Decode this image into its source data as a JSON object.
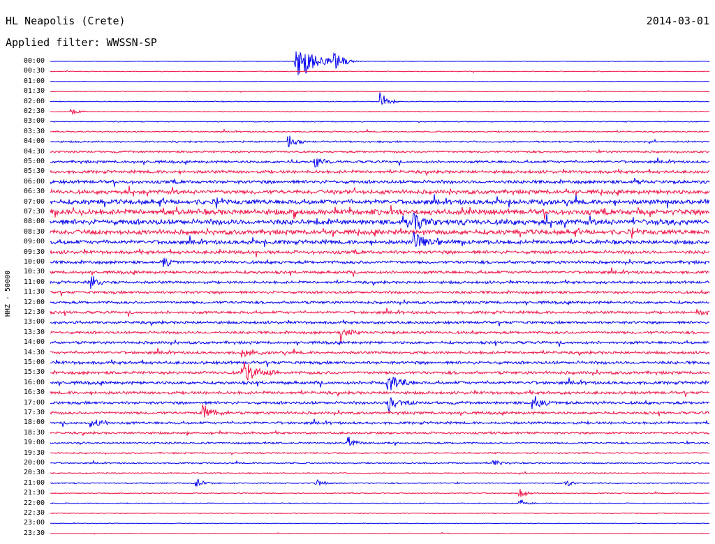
{
  "header": {
    "station": "HL Neapolis (Crete)",
    "date": "2014-03-01",
    "filter": "Applied filter: WWSSN-SP"
  },
  "chart_data": {
    "type": "line",
    "chart_kind": "helicorder seismogram",
    "ylabel": "HHZ - 50000",
    "rows": [
      "00:00",
      "00:30",
      "01:00",
      "01:30",
      "02:00",
      "02:30",
      "03:00",
      "03:30",
      "04:00",
      "04:30",
      "05:00",
      "05:30",
      "06:00",
      "06:30",
      "07:00",
      "07:30",
      "08:00",
      "08:30",
      "09:00",
      "09:30",
      "10:00",
      "10:30",
      "11:00",
      "11:30",
      "12:00",
      "12:30",
      "13:00",
      "13:30",
      "14:00",
      "14:30",
      "15:00",
      "15:30",
      "16:00",
      "16:30",
      "17:00",
      "17:30",
      "18:00",
      "18:30",
      "19:00",
      "19:30",
      "20:00",
      "20:30",
      "21:00",
      "21:30",
      "22:00",
      "22:30",
      "23:00",
      "23:30"
    ],
    "trace_colors": [
      "#0000ee",
      "#ee1144"
    ],
    "noise_level": [
      0.3,
      0.4,
      0.3,
      0.4,
      0.5,
      0.5,
      0.6,
      0.8,
      1.0,
      1.2,
      1.5,
      1.8,
      2.0,
      2.4,
      2.8,
      3.2,
      3.2,
      2.8,
      2.4,
      2.0,
      1.8,
      1.7,
      1.6,
      1.6,
      1.6,
      1.6,
      1.6,
      1.6,
      1.6,
      1.6,
      1.8,
      1.8,
      1.8,
      1.7,
      1.7,
      1.6,
      1.5,
      1.3,
      1.1,
      0.9,
      0.8,
      0.7,
      0.7,
      0.6,
      0.5,
      0.5,
      0.4,
      0.4
    ],
    "events": [
      {
        "row": 0,
        "x": 0.37,
        "amp": 40,
        "dur": 0.06
      },
      {
        "row": 0,
        "x": 0.43,
        "amp": 15,
        "dur": 0.03
      },
      {
        "row": 4,
        "x": 0.5,
        "amp": 18,
        "dur": 0.02
      },
      {
        "row": 5,
        "x": 0.03,
        "amp": 8,
        "dur": 0.02
      },
      {
        "row": 8,
        "x": 0.36,
        "amp": 14,
        "dur": 0.02
      },
      {
        "row": 10,
        "x": 0.4,
        "amp": 12,
        "dur": 0.02
      },
      {
        "row": 16,
        "x": 0.55,
        "amp": 18,
        "dur": 0.03
      },
      {
        "row": 18,
        "x": 0.55,
        "amp": 22,
        "dur": 0.03
      },
      {
        "row": 20,
        "x": 0.17,
        "amp": 12,
        "dur": 0.02
      },
      {
        "row": 22,
        "x": 0.06,
        "amp": 14,
        "dur": 0.02
      },
      {
        "row": 25,
        "x": 0.98,
        "amp": 12,
        "dur": 0.02
      },
      {
        "row": 27,
        "x": 0.44,
        "amp": 14,
        "dur": 0.02
      },
      {
        "row": 29,
        "x": 0.29,
        "amp": 12,
        "dur": 0.02
      },
      {
        "row": 31,
        "x": 0.29,
        "amp": 20,
        "dur": 0.04
      },
      {
        "row": 32,
        "x": 0.51,
        "amp": 22,
        "dur": 0.03
      },
      {
        "row": 34,
        "x": 0.51,
        "amp": 16,
        "dur": 0.03
      },
      {
        "row": 34,
        "x": 0.73,
        "amp": 14,
        "dur": 0.03
      },
      {
        "row": 35,
        "x": 0.23,
        "amp": 16,
        "dur": 0.03
      },
      {
        "row": 36,
        "x": 0.06,
        "amp": 12,
        "dur": 0.02
      },
      {
        "row": 38,
        "x": 0.45,
        "amp": 14,
        "dur": 0.02
      },
      {
        "row": 40,
        "x": 0.67,
        "amp": 8,
        "dur": 0.02
      },
      {
        "row": 42,
        "x": 0.22,
        "amp": 12,
        "dur": 0.02
      },
      {
        "row": 42,
        "x": 0.4,
        "amp": 10,
        "dur": 0.02
      },
      {
        "row": 42,
        "x": 0.78,
        "amp": 7,
        "dur": 0.02
      },
      {
        "row": 43,
        "x": 0.71,
        "amp": 10,
        "dur": 0.02
      },
      {
        "row": 44,
        "x": 0.71,
        "amp": 8,
        "dur": 0.02
      }
    ]
  }
}
